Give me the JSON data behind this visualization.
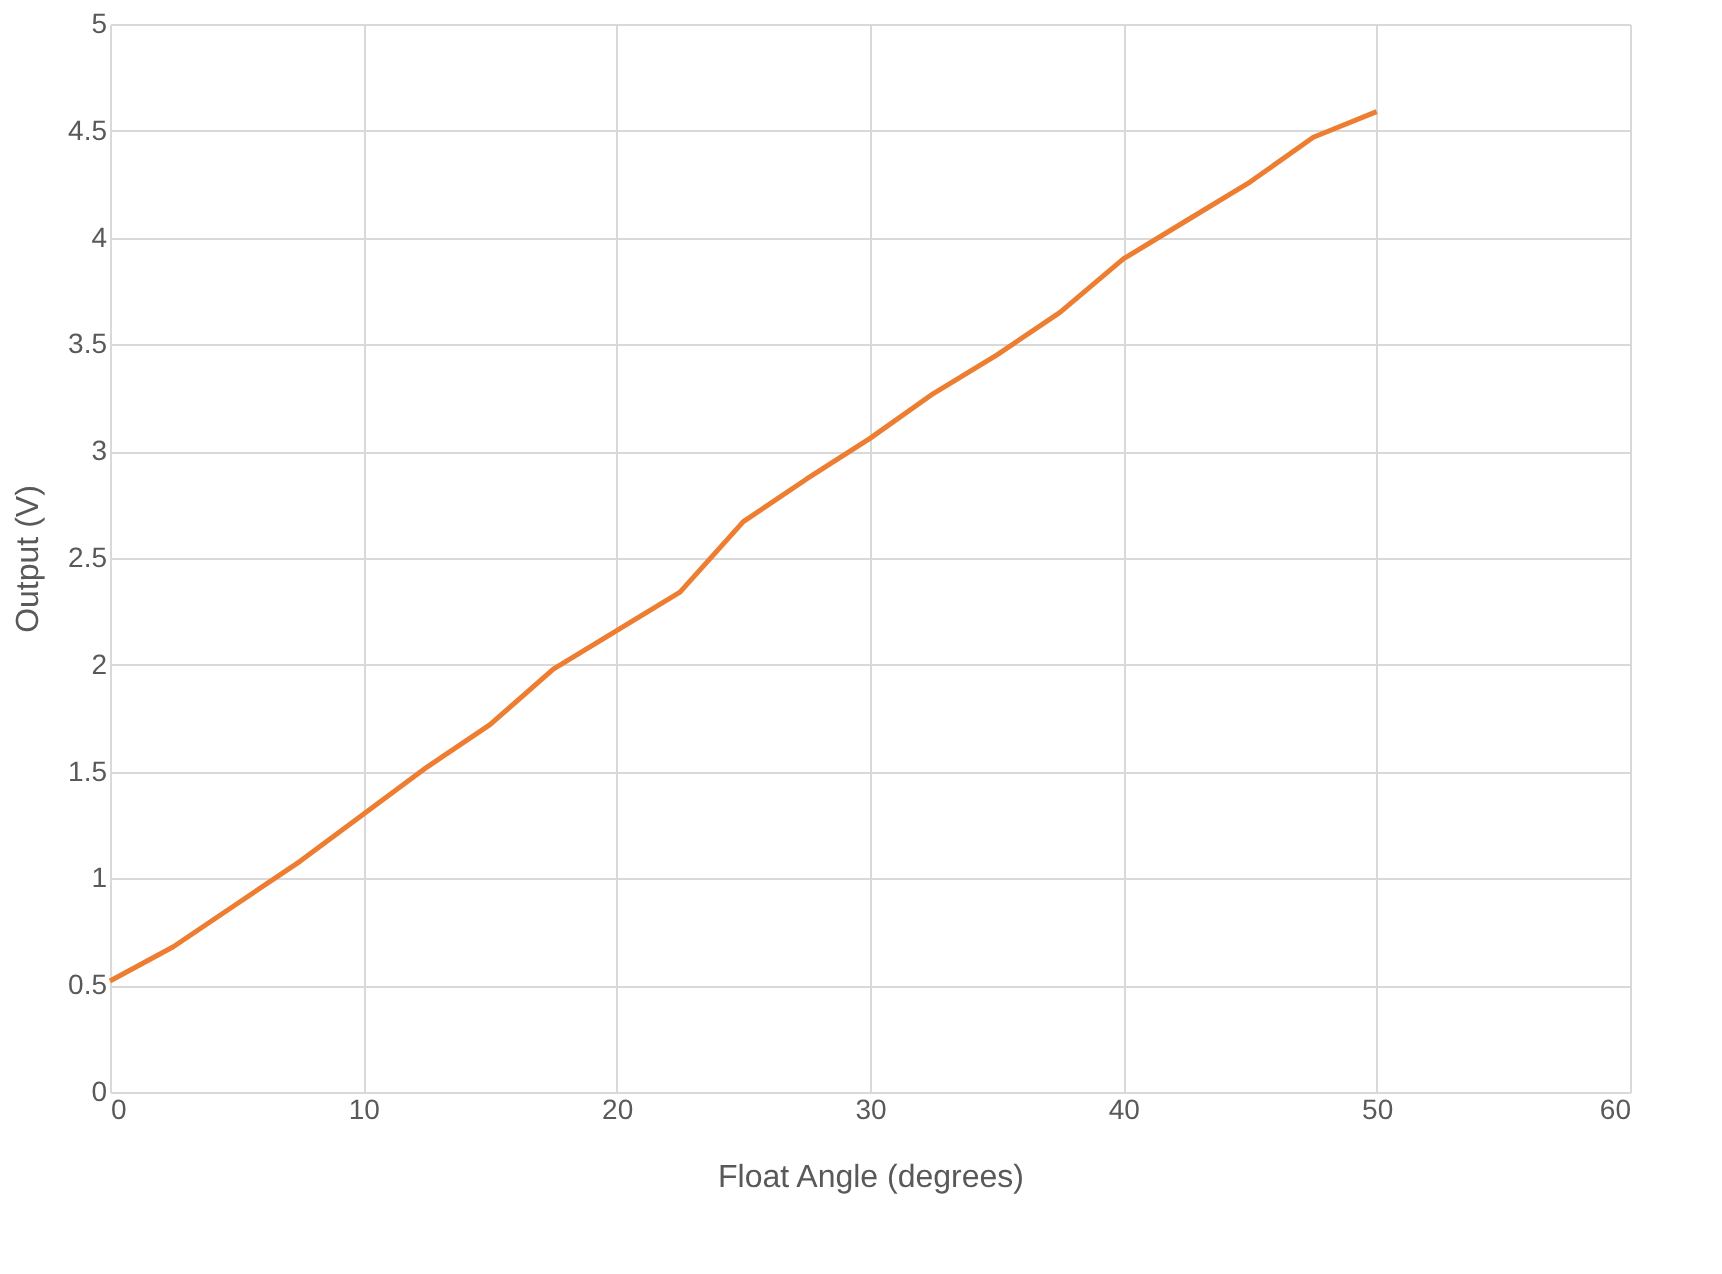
{
  "chart_data": {
    "type": "line",
    "xlabel": "Float Angle (degrees)",
    "ylabel": "Output (V)",
    "x": [
      0,
      2.5,
      5,
      7.5,
      10,
      12.5,
      15,
      17.5,
      20,
      22.5,
      25,
      27.5,
      30,
      32.5,
      35,
      37.5,
      40,
      42.5,
      45,
      47.5,
      50
    ],
    "series": [
      {
        "color": "#ed7d31",
        "values": [
          0.52,
          0.68,
          0.88,
          1.08,
          1.3,
          1.52,
          1.72,
          1.98,
          2.16,
          2.34,
          2.67,
          2.87,
          3.06,
          3.27,
          3.45,
          3.65,
          3.9,
          4.08,
          4.26,
          4.47,
          4.59
        ]
      }
    ],
    "xlim": [
      0,
      60
    ],
    "xticks": [
      0,
      10,
      20,
      30,
      40,
      50,
      60
    ],
    "ylim": [
      0,
      5
    ],
    "yticks": [
      0,
      0.5,
      1,
      1.5,
      2,
      2.5,
      3,
      3.5,
      4,
      4.5,
      5
    ],
    "grid": true,
    "marker": "none",
    "line_style": "solid",
    "legend": false
  }
}
